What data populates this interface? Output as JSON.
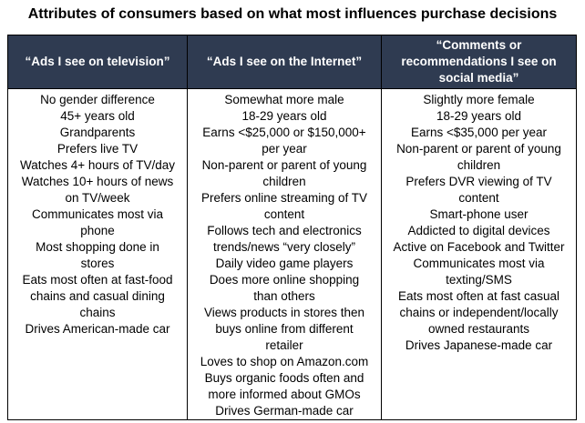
{
  "title": "Attributes of consumers based on what most influences purchase decisions",
  "table": {
    "headers": [
      "“Ads I see on television”",
      "“Ads I see on the Internet”",
      "“Comments or recommendations I see on social media”"
    ],
    "columns": [
      [
        "No gender difference",
        "45+ years old",
        "Grandparents",
        "Prefers live TV",
        "Watches 4+ hours of TV/day",
        "Watches 10+ hours of news on TV/week",
        "Communicates most via phone",
        "Most shopping done in stores",
        "Eats most often at fast-food chains and casual dining chains",
        "Drives American-made car"
      ],
      [
        "Somewhat more male",
        "18-29 years old",
        "Earns <$25,000 or $150,000+ per year",
        "Non-parent or parent of young children",
        "Prefers online streaming of TV content",
        "Follows tech and electronics trends/news “very closely”",
        "Daily video game players",
        "Does more online shopping than others",
        "Views products in stores then buys online from different retailer",
        "Loves to shop on Amazon.com",
        "Buys organic foods often and more informed about GMOs",
        "Drives German-made car"
      ],
      [
        "Slightly more female",
        "18-29 years old",
        "Earns <$35,000 per year",
        "Non-parent or parent of young children",
        "Prefers DVR viewing of TV content",
        "Smart-phone user",
        "Addicted to digital devices",
        "Active on Facebook and Twitter",
        "Communicates most via texting/SMS",
        "Eats most often at fast casual chains or independent/locally owned restaurants",
        "Drives Japanese-made car"
      ]
    ]
  }
}
